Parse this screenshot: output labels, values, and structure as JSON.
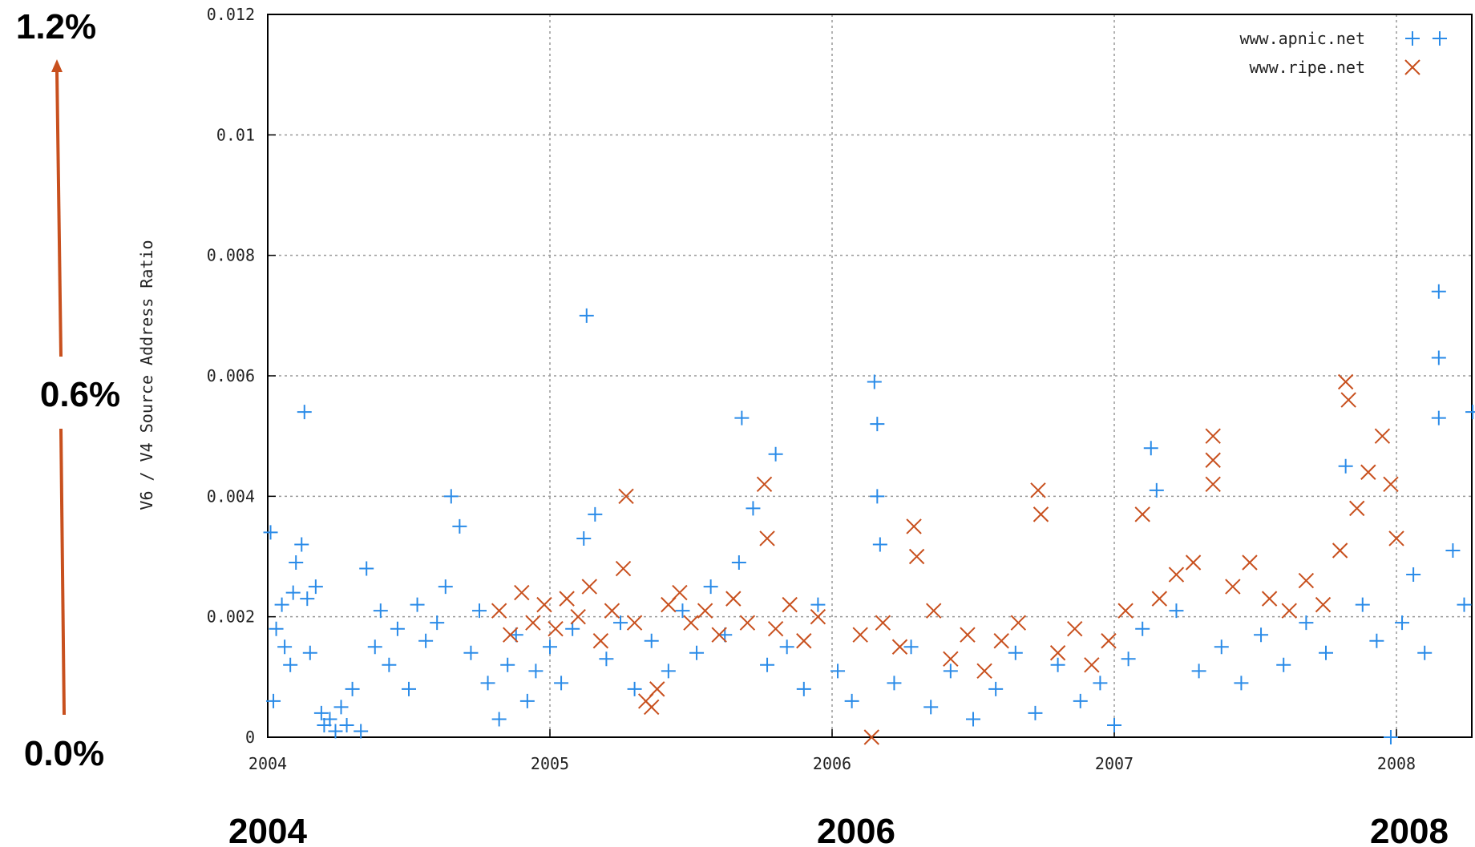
{
  "chart_data": {
    "type": "scatter",
    "y_label": "V6 / V4 Source Address Ratio",
    "annotations": [
      "1.2%",
      "0.6%",
      "0.0%",
      "2004",
      "2006",
      "2008"
    ],
    "xlim": [
      2004,
      2008.267
    ],
    "xticks": [
      2004,
      2005,
      2006,
      2007,
      2008
    ],
    "ylim": [
      0,
      0.012
    ],
    "yticks": [
      0,
      0.002,
      0.004,
      0.006,
      0.008,
      0.01,
      0.012
    ],
    "grid": true,
    "legend": "top-right",
    "series": [
      {
        "name": "www.apnic.net",
        "color": "#2a8be8",
        "marker": "plus",
        "x": [
          2004.01,
          2004.02,
          2004.03,
          2004.05,
          2004.06,
          2004.08,
          2004.09,
          2004.1,
          2004.12,
          2004.13,
          2004.14,
          2004.15,
          2004.17,
          2004.19,
          2004.2,
          2004.22,
          2004.24,
          2004.26,
          2004.28,
          2004.3,
          2004.33,
          2004.35,
          2004.38,
          2004.4,
          2004.43,
          2004.46,
          2004.5,
          2004.53,
          2004.56,
          2004.6,
          2004.63,
          2004.65,
          2004.68,
          2004.72,
          2004.75,
          2004.78,
          2004.82,
          2004.85,
          2004.88,
          2004.92,
          2004.95,
          2005.0,
          2005.04,
          2005.08,
          2005.12,
          2005.13,
          2005.16,
          2005.2,
          2005.25,
          2005.3,
          2005.36,
          2005.42,
          2005.47,
          2005.52,
          2005.57,
          2005.62,
          2005.67,
          2005.68,
          2005.72,
          2005.77,
          2005.8,
          2005.84,
          2005.9,
          2005.95,
          2006.02,
          2006.07,
          2006.15,
          2006.16,
          2006.16,
          2006.17,
          2006.22,
          2006.28,
          2006.35,
          2006.42,
          2006.5,
          2006.58,
          2006.65,
          2006.72,
          2006.8,
          2006.88,
          2006.95,
          2007.0,
          2007.05,
          2007.1,
          2007.13,
          2007.15,
          2007.22,
          2007.3,
          2007.38,
          2007.45,
          2007.52,
          2007.6,
          2007.68,
          2007.75,
          2007.82,
          2007.88,
          2007.93,
          2007.98,
          2008.02,
          2008.06,
          2008.1,
          2008.15,
          2008.15,
          2008.15,
          2008.2,
          2008.24,
          2008.27
        ],
        "values": [
          0.0034,
          0.0006,
          0.0018,
          0.0022,
          0.0015,
          0.0012,
          0.0024,
          0.0029,
          0.0032,
          0.0054,
          0.0023,
          0.0014,
          0.0025,
          0.0004,
          0.0002,
          0.0003,
          0.0001,
          0.0005,
          0.0002,
          0.0008,
          0.0001,
          0.0028,
          0.0015,
          0.0021,
          0.0012,
          0.0018,
          0.0008,
          0.0022,
          0.0016,
          0.0019,
          0.0025,
          0.004,
          0.0035,
          0.0014,
          0.0021,
          0.0009,
          0.0003,
          0.0012,
          0.0017,
          0.0006,
          0.0011,
          0.0015,
          0.0009,
          0.0018,
          0.0033,
          0.007,
          0.0037,
          0.0013,
          0.0019,
          0.0008,
          0.0016,
          0.0011,
          0.0021,
          0.0014,
          0.0025,
          0.0017,
          0.0029,
          0.0053,
          0.0038,
          0.0012,
          0.0047,
          0.0015,
          0.0008,
          0.0022,
          0.0011,
          0.0006,
          0.0059,
          0.0052,
          0.004,
          0.0032,
          0.0009,
          0.0015,
          0.0005,
          0.0011,
          0.0003,
          0.0008,
          0.0014,
          0.0004,
          0.0012,
          0.0006,
          0.0009,
          0.0002,
          0.0013,
          0.0018,
          0.0048,
          0.0041,
          0.0021,
          0.0011,
          0.0015,
          0.0009,
          0.0017,
          0.0012,
          0.0019,
          0.0014,
          0.0045,
          0.0022,
          0.0016,
          0,
          0.0019,
          0.0027,
          0.0014,
          0.0074,
          0.0063,
          0.0053,
          0.0031,
          0.0022,
          0.0054
        ]
      },
      {
        "name": "www.ripe.net",
        "color": "#c8501e",
        "marker": "cross",
        "x": [
          2004.82,
          2004.86,
          2004.9,
          2004.94,
          2004.98,
          2005.02,
          2005.06,
          2005.1,
          2005.14,
          2005.18,
          2005.22,
          2005.26,
          2005.27,
          2005.3,
          2005.34,
          2005.36,
          2005.38,
          2005.42,
          2005.46,
          2005.5,
          2005.55,
          2005.6,
          2005.65,
          2005.7,
          2005.76,
          2005.77,
          2005.8,
          2005.85,
          2005.9,
          2005.95,
          2006.1,
          2006.14,
          2006.18,
          2006.24,
          2006.29,
          2006.3,
          2006.36,
          2006.42,
          2006.48,
          2006.54,
          2006.6,
          2006.66,
          2006.73,
          2006.74,
          2006.8,
          2006.86,
          2006.92,
          2006.98,
          2007.04,
          2007.1,
          2007.16,
          2007.22,
          2007.28,
          2007.35,
          2007.35,
          2007.35,
          2007.42,
          2007.48,
          2007.55,
          2007.62,
          2007.68,
          2007.74,
          2007.8,
          2007.82,
          2007.83,
          2007.86,
          2007.9,
          2007.95,
          2007.98,
          2008.0
        ],
        "values": [
          0.0021,
          0.0017,
          0.0024,
          0.0019,
          0.0022,
          0.0018,
          0.0023,
          0.002,
          0.0025,
          0.0016,
          0.0021,
          0.0028,
          0.004,
          0.0019,
          0.0006,
          0.0005,
          0.0008,
          0.0022,
          0.0024,
          0.0019,
          0.0021,
          0.0017,
          0.0023,
          0.0019,
          0.0042,
          0.0033,
          0.0018,
          0.0022,
          0.0016,
          0.002,
          0.0017,
          0,
          0.0019,
          0.0015,
          0.0035,
          0.003,
          0.0021,
          0.0013,
          0.0017,
          0.0011,
          0.0016,
          0.0019,
          0.0041,
          0.0037,
          0.0014,
          0.0018,
          0.0012,
          0.0016,
          0.0021,
          0.0037,
          0.0023,
          0.0027,
          0.0029,
          0.005,
          0.0046,
          0.0042,
          0.0025,
          0.0029,
          0.0023,
          0.0021,
          0.0026,
          0.0022,
          0.0031,
          0.0059,
          0.0056,
          0.0038,
          0.0044,
          0.005,
          0.0042,
          0.0033
        ]
      }
    ]
  }
}
